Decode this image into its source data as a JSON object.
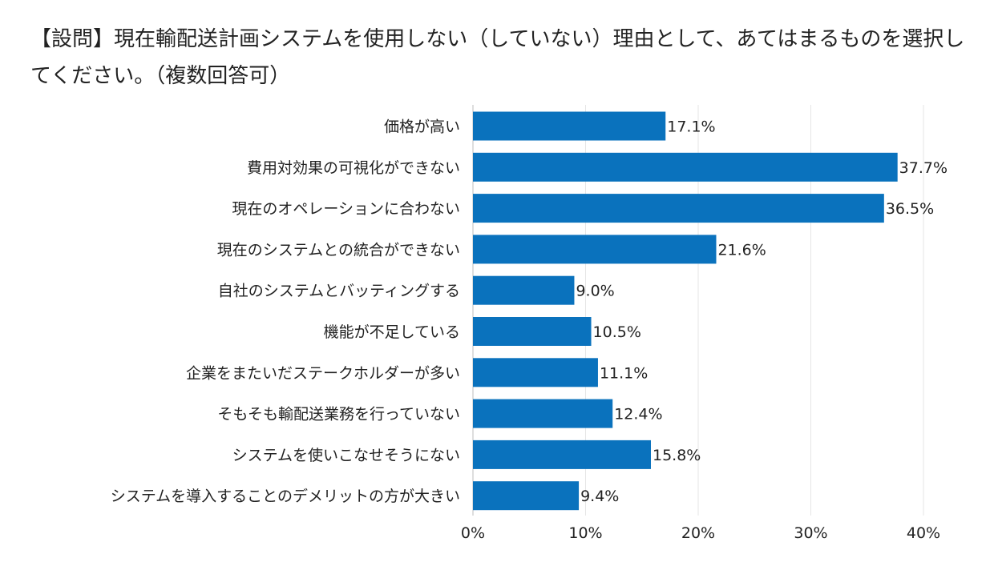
{
  "chart_data": {
    "type": "bar",
    "orientation": "horizontal",
    "title": "【設問】現在輸配送計画システムを使用しない（していない）理由として、あてはまるものを選択してください。（複数回答可）",
    "xlabel": "",
    "ylabel": "",
    "categories": [
      "価格が高い",
      "費用対効果の可視化ができない",
      "現在のオペレーションに合わない",
      "現在のシステムとの統合ができない",
      "自社のシステムとバッティングする",
      "機能が不足している",
      "企業をまたいだステークホルダーが多い",
      "そもそも輸配送業務を行っていない",
      "システムを使いこなせそうにない",
      "システムを導入することのデメリットの方が大きい"
    ],
    "values": [
      17.1,
      37.7,
      36.5,
      21.6,
      9.0,
      10.5,
      11.1,
      12.4,
      15.8,
      9.4
    ],
    "value_labels": [
      "17.1%",
      "37.7%",
      "36.5%",
      "21.6%",
      "9.0%",
      "10.5%",
      "11.1%",
      "12.4%",
      "15.8%",
      "9.4%"
    ],
    "xlim": [
      0,
      40
    ],
    "x_ticks": [
      0,
      10,
      20,
      30,
      40
    ],
    "x_tick_labels": [
      "0%",
      "10%",
      "20%",
      "30%",
      "40%"
    ],
    "grid": true,
    "bar_color": "#0a72bd",
    "grid_color": "#e6e6e6",
    "axis_color": "#bdbdbd"
  }
}
